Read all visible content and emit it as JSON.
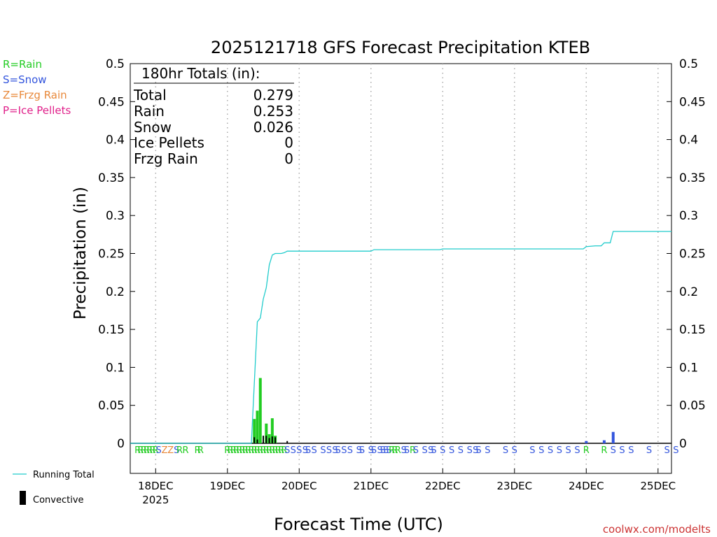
{
  "chart_data": {
    "type": "bar",
    "title": "2025121718 GFS Forecast Precipitation KTEB",
    "xlabel": "Forecast Time (UTC)",
    "ylabel": "Precipitation (in)",
    "credit": "coolwx.com/modelts",
    "ylim": [
      0,
      0.5
    ],
    "xlim_hours": [
      -2.5,
      178.5
    ],
    "y_ticks": [
      "0",
      "0.05",
      "0.1",
      "0.15",
      "0.2",
      "0.25",
      "0.3",
      "0.35",
      "0.4",
      "0.45",
      "0.5"
    ],
    "x_ticks": [
      {
        "label": "18DEC",
        "sublabel": "2025",
        "hour": 6
      },
      {
        "label": "19DEC",
        "sublabel": "",
        "hour": 30
      },
      {
        "label": "20DEC",
        "sublabel": "",
        "hour": 54
      },
      {
        "label": "21DEC",
        "sublabel": "",
        "hour": 78
      },
      {
        "label": "22DEC",
        "sublabel": "",
        "hour": 102
      },
      {
        "label": "23DEC",
        "sublabel": "",
        "hour": 126
      },
      {
        "label": "24DEC",
        "sublabel": "",
        "hour": 150
      },
      {
        "label": "25DEC",
        "sublabel": "",
        "hour": 174
      }
    ],
    "precip_type_legend": [
      {
        "label": "R=Rain",
        "color": "#22cc22"
      },
      {
        "label": "S=Snow",
        "color": "#3355dd"
      },
      {
        "label": "Z=Frzg Rain",
        "color": "#e8883a"
      },
      {
        "label": "P=Ice Pellets",
        "color": "#e0208a"
      }
    ],
    "series_legend": [
      {
        "label": "Running Total",
        "color": "#22cccc",
        "kind": "line"
      },
      {
        "label": "Convective",
        "color": "#000000",
        "kind": "bar"
      }
    ],
    "totals": {
      "header": "180hr Totals (in):",
      "rows": [
        {
          "label": "Total",
          "value": "0.279"
        },
        {
          "label": "Rain",
          "value": "0.253"
        },
        {
          "label": "Snow",
          "value": "0.026"
        },
        {
          "label": "Ice Pellets",
          "value": "0"
        },
        {
          "label": "Frzg Rain",
          "value": "0"
        }
      ]
    },
    "bars": [
      {
        "hour": 39,
        "value": 0.032,
        "color": "#22cc22"
      },
      {
        "hour": 40,
        "value": 0.043,
        "color": "#22cc22"
      },
      {
        "hour": 41,
        "value": 0.086,
        "color": "#22cc22"
      },
      {
        "hour": 43,
        "value": 0.026,
        "color": "#22cc22"
      },
      {
        "hour": 44,
        "value": 0.012,
        "color": "#22cc22"
      },
      {
        "hour": 45,
        "value": 0.033,
        "color": "#22cc22"
      },
      {
        "hour": 46,
        "value": 0.01,
        "color": "#22cc22"
      },
      {
        "hour": 150,
        "value": 0.003,
        "color": "#3355dd"
      },
      {
        "hour": 156,
        "value": 0.004,
        "color": "#3355dd"
      },
      {
        "hour": 159,
        "value": 0.015,
        "color": "#3355dd"
      }
    ],
    "convective": [
      {
        "hour": 39,
        "value": 0.008
      },
      {
        "hour": 40,
        "value": 0.005
      },
      {
        "hour": 42,
        "value": 0.01
      },
      {
        "hour": 43,
        "value": 0.01
      },
      {
        "hour": 44,
        "value": 0.007
      },
      {
        "hour": 45,
        "value": 0.009
      },
      {
        "hour": 46,
        "value": 0.008
      },
      {
        "hour": 50,
        "value": 0.003
      }
    ],
    "running_total": [
      [
        -2.5,
        0
      ],
      [
        38,
        0
      ],
      [
        40,
        0.16
      ],
      [
        41,
        0.165
      ],
      [
        42,
        0.19
      ],
      [
        43,
        0.205
      ],
      [
        44,
        0.235
      ],
      [
        45,
        0.248
      ],
      [
        46,
        0.25
      ],
      [
        48,
        0.25
      ],
      [
        49,
        0.251
      ],
      [
        50,
        0.253
      ],
      [
        78,
        0.253
      ],
      [
        79,
        0.255
      ],
      [
        101,
        0.255
      ],
      [
        102,
        0.256
      ],
      [
        149,
        0.256
      ],
      [
        150,
        0.259
      ],
      [
        153,
        0.26
      ],
      [
        155,
        0.26
      ],
      [
        156,
        0.264
      ],
      [
        158,
        0.264
      ],
      [
        159,
        0.279
      ],
      [
        178.5,
        0.279
      ]
    ],
    "type_markers": [
      {
        "hour": 0,
        "type": "R"
      },
      {
        "hour": 1,
        "type": "R"
      },
      {
        "hour": 2,
        "type": "R"
      },
      {
        "hour": 3,
        "type": "R"
      },
      {
        "hour": 4,
        "type": "R"
      },
      {
        "hour": 5,
        "type": "R"
      },
      {
        "hour": 6,
        "type": "R"
      },
      {
        "hour": 7,
        "type": "S"
      },
      {
        "hour": 9,
        "type": "Z"
      },
      {
        "hour": 11,
        "type": "Z"
      },
      {
        "hour": 13,
        "type": "S"
      },
      {
        "hour": 14,
        "type": "R"
      },
      {
        "hour": 16,
        "type": "R"
      },
      {
        "hour": 20,
        "type": "R"
      },
      {
        "hour": 21,
        "type": "R"
      },
      {
        "hour": 30,
        "type": "R"
      },
      {
        "hour": 31,
        "type": "R"
      },
      {
        "hour": 32,
        "type": "R"
      },
      {
        "hour": 33,
        "type": "R"
      },
      {
        "hour": 34,
        "type": "R"
      },
      {
        "hour": 35,
        "type": "R"
      },
      {
        "hour": 36,
        "type": "R"
      },
      {
        "hour": 37,
        "type": "R"
      },
      {
        "hour": 38,
        "type": "R"
      },
      {
        "hour": 39,
        "type": "R"
      },
      {
        "hour": 40,
        "type": "R"
      },
      {
        "hour": 41,
        "type": "R"
      },
      {
        "hour": 42,
        "type": "R"
      },
      {
        "hour": 43,
        "type": "R"
      },
      {
        "hour": 44,
        "type": "R"
      },
      {
        "hour": 45,
        "type": "R"
      },
      {
        "hour": 46,
        "type": "R"
      },
      {
        "hour": 47,
        "type": "R"
      },
      {
        "hour": 48,
        "type": "R"
      },
      {
        "hour": 49,
        "type": "R"
      },
      {
        "hour": 50,
        "type": "S"
      },
      {
        "hour": 52,
        "type": "S"
      },
      {
        "hour": 54,
        "type": "S"
      },
      {
        "hour": 56,
        "type": "S"
      },
      {
        "hour": 57,
        "type": "S"
      },
      {
        "hour": 59,
        "type": "S"
      },
      {
        "hour": 62,
        "type": "S"
      },
      {
        "hour": 64,
        "type": "S"
      },
      {
        "hour": 66,
        "type": "S"
      },
      {
        "hour": 67,
        "type": "S"
      },
      {
        "hour": 69,
        "type": "S"
      },
      {
        "hour": 71,
        "type": "S"
      },
      {
        "hour": 74,
        "type": "S"
      },
      {
        "hour": 75,
        "type": "S"
      },
      {
        "hour": 78,
        "type": "S"
      },
      {
        "hour": 79,
        "type": "S"
      },
      {
        "hour": 81,
        "type": "S"
      },
      {
        "hour": 82,
        "type": "S"
      },
      {
        "hour": 83,
        "type": "S"
      },
      {
        "hour": 84,
        "type": "S"
      },
      {
        "hour": 85,
        "type": "R"
      },
      {
        "hour": 86,
        "type": "R"
      },
      {
        "hour": 87,
        "type": "R"
      },
      {
        "hour": 89,
        "type": "S"
      },
      {
        "hour": 90,
        "type": "S"
      },
      {
        "hour": 92,
        "type": "R"
      },
      {
        "hour": 93,
        "type": "S"
      },
      {
        "hour": 96,
        "type": "S"
      },
      {
        "hour": 98,
        "type": "S"
      },
      {
        "hour": 99,
        "type": "S"
      },
      {
        "hour": 102,
        "type": "S"
      },
      {
        "hour": 105,
        "type": "S"
      },
      {
        "hour": 108,
        "type": "S"
      },
      {
        "hour": 111,
        "type": "S"
      },
      {
        "hour": 113,
        "type": "S"
      },
      {
        "hour": 114,
        "type": "S"
      },
      {
        "hour": 117,
        "type": "S"
      },
      {
        "hour": 123,
        "type": "S"
      },
      {
        "hour": 126,
        "type": "S"
      },
      {
        "hour": 132,
        "type": "S"
      },
      {
        "hour": 135,
        "type": "S"
      },
      {
        "hour": 138,
        "type": "S"
      },
      {
        "hour": 141,
        "type": "S"
      },
      {
        "hour": 144,
        "type": "S"
      },
      {
        "hour": 147,
        "type": "S"
      },
      {
        "hour": 150,
        "type": "R"
      },
      {
        "hour": 156,
        "type": "R"
      },
      {
        "hour": 159,
        "type": "S"
      },
      {
        "hour": 162,
        "type": "S"
      },
      {
        "hour": 165,
        "type": "S"
      },
      {
        "hour": 171,
        "type": "S"
      },
      {
        "hour": 177,
        "type": "S"
      },
      {
        "hour": 180,
        "type": "S"
      }
    ],
    "type_colors": {
      "R": "#22cc22",
      "S": "#3355dd",
      "Z": "#e8883a",
      "P": "#e0208a"
    }
  }
}
